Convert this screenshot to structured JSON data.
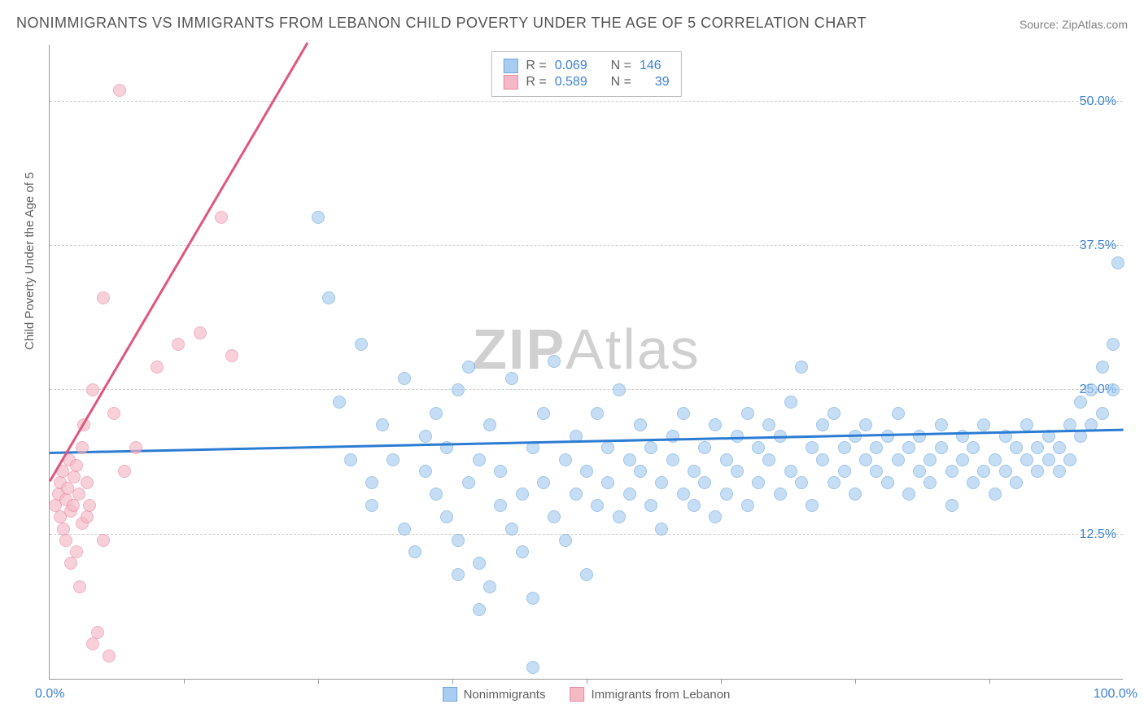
{
  "title": "NONIMMIGRANTS VS IMMIGRANTS FROM LEBANON CHILD POVERTY UNDER THE AGE OF 5 CORRELATION CHART",
  "source": "Source: ZipAtlas.com",
  "watermark": {
    "bold": "ZIP",
    "light": "Atlas"
  },
  "y_axis_label": "Child Poverty Under the Age of 5",
  "chart": {
    "type": "scatter",
    "xlim": [
      0,
      100
    ],
    "ylim": [
      0,
      55
    ],
    "x_ticks_visible": [
      0,
      100
    ],
    "x_tick_labels": [
      "0.0%",
      "100.0%"
    ],
    "x_minor_ticks": [
      12.5,
      25,
      37.5,
      50,
      62.5,
      75,
      87.5
    ],
    "y_gridlines": [
      12.5,
      25,
      37.5,
      50
    ],
    "y_tick_labels": [
      "12.5%",
      "25.0%",
      "37.5%",
      "50.0%"
    ],
    "background_color": "#ffffff",
    "grid_color": "#cccccc",
    "axis_color": "#999999",
    "series": [
      {
        "name": "Nonimmigrants",
        "color_fill": "#a8cdf0",
        "color_stroke": "#6fa8dc",
        "marker_size": 16,
        "R": "0.069",
        "N": "146",
        "trend": {
          "x1": 0,
          "y1": 19.5,
          "x2": 100,
          "y2": 21.5,
          "color": "#2b7cd3",
          "width": 2.5
        },
        "points": [
          [
            25,
            40
          ],
          [
            26,
            33
          ],
          [
            27,
            24
          ],
          [
            28,
            19
          ],
          [
            29,
            29
          ],
          [
            30,
            17
          ],
          [
            30,
            15
          ],
          [
            31,
            22
          ],
          [
            32,
            19
          ],
          [
            33,
            26
          ],
          [
            33,
            13
          ],
          [
            34,
            11
          ],
          [
            35,
            21
          ],
          [
            35,
            18
          ],
          [
            36,
            16
          ],
          [
            36,
            23
          ],
          [
            37,
            14
          ],
          [
            37,
            20
          ],
          [
            38,
            12
          ],
          [
            38,
            25
          ],
          [
            39,
            27
          ],
          [
            39,
            17
          ],
          [
            40,
            10
          ],
          [
            40,
            19
          ],
          [
            41,
            22
          ],
          [
            41,
            8
          ],
          [
            42,
            15
          ],
          [
            42,
            18
          ],
          [
            43,
            26
          ],
          [
            43,
            13
          ],
          [
            44,
            16
          ],
          [
            44,
            11
          ],
          [
            45,
            20
          ],
          [
            45,
            7
          ],
          [
            46,
            23
          ],
          [
            46,
            17
          ],
          [
            47,
            27.5
          ],
          [
            47,
            14
          ],
          [
            48,
            19
          ],
          [
            48,
            12
          ],
          [
            49,
            16
          ],
          [
            49,
            21
          ],
          [
            50,
            18
          ],
          [
            50,
            9
          ],
          [
            51,
            15
          ],
          [
            51,
            23
          ],
          [
            52,
            17
          ],
          [
            52,
            20
          ],
          [
            53,
            14
          ],
          [
            53,
            25
          ],
          [
            54,
            19
          ],
          [
            54,
            16
          ],
          [
            55,
            22
          ],
          [
            55,
            18
          ],
          [
            56,
            15
          ],
          [
            56,
            20
          ],
          [
            57,
            17
          ],
          [
            57,
            13
          ],
          [
            58,
            21
          ],
          [
            58,
            19
          ],
          [
            59,
            16
          ],
          [
            59,
            23
          ],
          [
            60,
            18
          ],
          [
            60,
            15
          ],
          [
            61,
            20
          ],
          [
            61,
            17
          ],
          [
            62,
            22
          ],
          [
            62,
            14
          ],
          [
            63,
            19
          ],
          [
            63,
            16
          ],
          [
            64,
            21
          ],
          [
            64,
            18
          ],
          [
            65,
            23
          ],
          [
            65,
            15
          ],
          [
            66,
            20
          ],
          [
            66,
            17
          ],
          [
            67,
            19
          ],
          [
            67,
            22
          ],
          [
            68,
            16
          ],
          [
            68,
            21
          ],
          [
            69,
            18
          ],
          [
            69,
            24
          ],
          [
            70,
            27
          ],
          [
            70,
            17
          ],
          [
            71,
            20
          ],
          [
            71,
            15
          ],
          [
            72,
            22
          ],
          [
            72,
            19
          ],
          [
            73,
            23
          ],
          [
            73,
            17
          ],
          [
            74,
            20
          ],
          [
            74,
            18
          ],
          [
            75,
            21
          ],
          [
            75,
            16
          ],
          [
            76,
            19
          ],
          [
            76,
            22
          ],
          [
            77,
            18
          ],
          [
            77,
            20
          ],
          [
            78,
            21
          ],
          [
            78,
            17
          ],
          [
            79,
            19
          ],
          [
            79,
            23
          ],
          [
            80,
            16
          ],
          [
            80,
            20
          ],
          [
            81,
            18
          ],
          [
            81,
            21
          ],
          [
            82,
            19
          ],
          [
            82,
            17
          ],
          [
            83,
            20
          ],
          [
            83,
            22
          ],
          [
            84,
            18
          ],
          [
            84,
            15
          ],
          [
            85,
            19
          ],
          [
            85,
            21
          ],
          [
            86,
            20
          ],
          [
            86,
            17
          ],
          [
            87,
            18
          ],
          [
            87,
            22
          ],
          [
            88,
            19
          ],
          [
            88,
            16
          ],
          [
            89,
            21
          ],
          [
            89,
            18
          ],
          [
            90,
            20
          ],
          [
            90,
            17
          ],
          [
            91,
            19
          ],
          [
            91,
            22
          ],
          [
            92,
            18
          ],
          [
            92,
            20
          ],
          [
            93,
            21
          ],
          [
            93,
            19
          ],
          [
            94,
            20
          ],
          [
            94,
            18
          ],
          [
            95,
            22
          ],
          [
            95,
            19
          ],
          [
            96,
            21
          ],
          [
            96,
            24
          ],
          [
            97,
            25
          ],
          [
            97,
            22
          ],
          [
            98,
            27
          ],
          [
            98,
            23
          ],
          [
            99,
            29
          ],
          [
            99,
            25
          ],
          [
            99.5,
            36
          ],
          [
            45,
            1
          ],
          [
            40,
            6
          ],
          [
            38,
            9
          ]
        ]
      },
      {
        "name": "Immigrants from Lebanon",
        "color_fill": "#f5b8c5",
        "color_stroke": "#e88ba3",
        "marker_size": 16,
        "R": "0.589",
        "N": "39",
        "trend": {
          "x1": 0,
          "y1": 17,
          "x2": 24,
          "y2": 55,
          "color": "#e0567d",
          "width": 2.5
        },
        "points": [
          [
            0.5,
            15
          ],
          [
            0.8,
            16
          ],
          [
            1,
            17
          ],
          [
            1,
            14
          ],
          [
            1.2,
            18
          ],
          [
            1.3,
            13
          ],
          [
            1.5,
            15.5
          ],
          [
            1.5,
            12
          ],
          [
            1.7,
            16.5
          ],
          [
            1.8,
            19
          ],
          [
            2,
            14.5
          ],
          [
            2,
            10
          ],
          [
            2.2,
            15
          ],
          [
            2.3,
            17.5
          ],
          [
            2.5,
            18.5
          ],
          [
            2.5,
            11
          ],
          [
            2.7,
            16
          ],
          [
            2.8,
            8
          ],
          [
            3,
            13.5
          ],
          [
            3,
            20
          ],
          [
            3.2,
            22
          ],
          [
            3.5,
            14
          ],
          [
            3.5,
            17
          ],
          [
            3.7,
            15
          ],
          [
            4,
            25
          ],
          [
            4,
            3
          ],
          [
            4.5,
            4
          ],
          [
            5,
            33
          ],
          [
            5,
            12
          ],
          [
            5.5,
            2
          ],
          [
            6,
            23
          ],
          [
            6.5,
            51
          ],
          [
            7,
            18
          ],
          [
            8,
            20
          ],
          [
            10,
            27
          ],
          [
            12,
            29
          ],
          [
            14,
            30
          ],
          [
            16,
            40
          ],
          [
            17,
            28
          ]
        ]
      }
    ]
  },
  "legend_top_label_R": "R =",
  "legend_top_label_N": "N =",
  "legend_bottom": [
    {
      "label": "Nonimmigrants",
      "swatch_fill": "#a8cdf0",
      "swatch_stroke": "#6fa8dc"
    },
    {
      "label": "Immigrants from Lebanon",
      "swatch_fill": "#f5b8c5",
      "swatch_stroke": "#e88ba3"
    }
  ]
}
